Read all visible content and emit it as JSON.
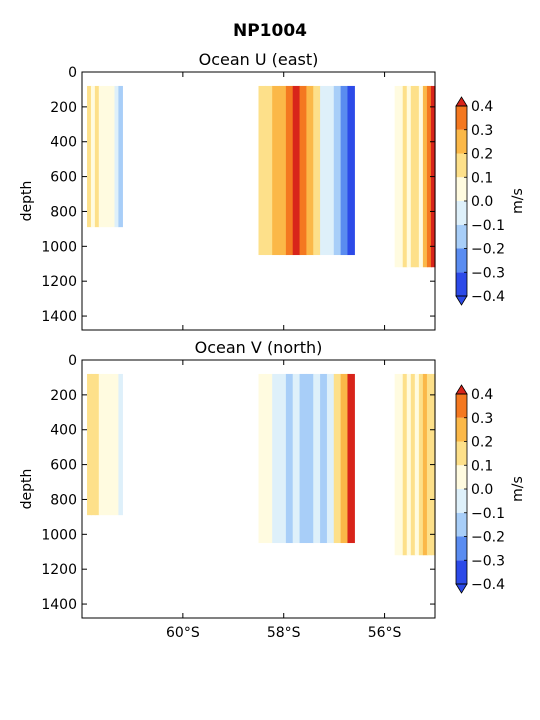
{
  "suptitle": "NP1004",
  "colorbar": {
    "label": "m/s",
    "ticks": [
      "−0.4",
      "−0.3",
      "−0.2",
      "−0.1",
      "0.0",
      "0.1",
      "0.2",
      "0.3",
      "0.4"
    ],
    "levels": [
      -0.4,
      -0.3,
      -0.2,
      -0.1,
      0.0,
      0.1,
      0.2,
      0.3,
      0.4
    ],
    "colors": [
      "#2c4ae8",
      "#5a8cf0",
      "#a8cef8",
      "#def0fa",
      "#fffbe0",
      "#fde08a",
      "#fbb848",
      "#f47820",
      "#d8241a"
    ],
    "extend": "both"
  },
  "shared_x": {
    "ticks": [
      "60°S",
      "58°S",
      "56°S"
    ],
    "tick_values": [
      -60,
      -58,
      -56
    ],
    "xlim": [
      -62,
      -55
    ]
  },
  "chart_data": [
    {
      "type": "contourf",
      "title": "Ocean U (east)",
      "ylabel": "depth",
      "ylim": [
        1480,
        0
      ],
      "yticks": [
        "0",
        "200",
        "400",
        "600",
        "800",
        "1000",
        "1200",
        "1400"
      ],
      "ytick_values": [
        0,
        200,
        400,
        600,
        800,
        1000,
        1200,
        1400
      ],
      "sections": [
        {
          "lat_range": [
            -61.9,
            -61.2
          ],
          "depth_range": [
            80,
            890
          ],
          "values": [
            0.1,
            0.0,
            0.1,
            0.0,
            0.0,
            0.0,
            0.0,
            -0.1,
            -0.2
          ]
        },
        {
          "lat_range": [
            -58.5,
            -56.6
          ],
          "depth_range": [
            80,
            1050
          ],
          "values": [
            0.15,
            0.1,
            0.2,
            0.25,
            0.3,
            0.4,
            0.35,
            0.2,
            0.1,
            -0.05,
            -0.1,
            -0.2,
            -0.3,
            -0.4
          ]
        },
        {
          "lat_range": [
            -55.8,
            -55.0
          ],
          "depth_range": [
            80,
            1120
          ],
          "values": [
            0.0,
            0.05,
            0.1,
            0.0,
            0.1,
            0.15,
            0.05,
            0.2,
            0.3,
            0.4
          ]
        }
      ]
    },
    {
      "type": "contourf",
      "title": "Ocean V (north)",
      "ylabel": "depth",
      "ylim": [
        1480,
        0
      ],
      "yticks": [
        "0",
        "200",
        "400",
        "600",
        "800",
        "1000",
        "1200",
        "1400"
      ],
      "ytick_values": [
        0,
        200,
        400,
        600,
        800,
        1000,
        1200,
        1400
      ],
      "sections": [
        {
          "lat_range": [
            -61.9,
            -61.2
          ],
          "depth_range": [
            80,
            890
          ],
          "values": [
            0.1,
            0.15,
            0.1,
            0.05,
            0.0,
            0.0,
            0.05,
            0.0,
            -0.05
          ]
        },
        {
          "lat_range": [
            -58.5,
            -56.6
          ],
          "depth_range": [
            80,
            1050
          ],
          "values": [
            0.0,
            0.0,
            -0.05,
            -0.1,
            -0.15,
            -0.1,
            -0.15,
            -0.2,
            -0.1,
            -0.15,
            -0.05,
            0.1,
            0.2,
            0.4
          ]
        },
        {
          "lat_range": [
            -55.8,
            -55.0
          ],
          "depth_range": [
            80,
            1120
          ],
          "values": [
            0.05,
            0.0,
            0.1,
            0.0,
            0.15,
            0.05,
            0.1,
            0.2,
            0.1,
            0.15
          ]
        }
      ]
    }
  ]
}
